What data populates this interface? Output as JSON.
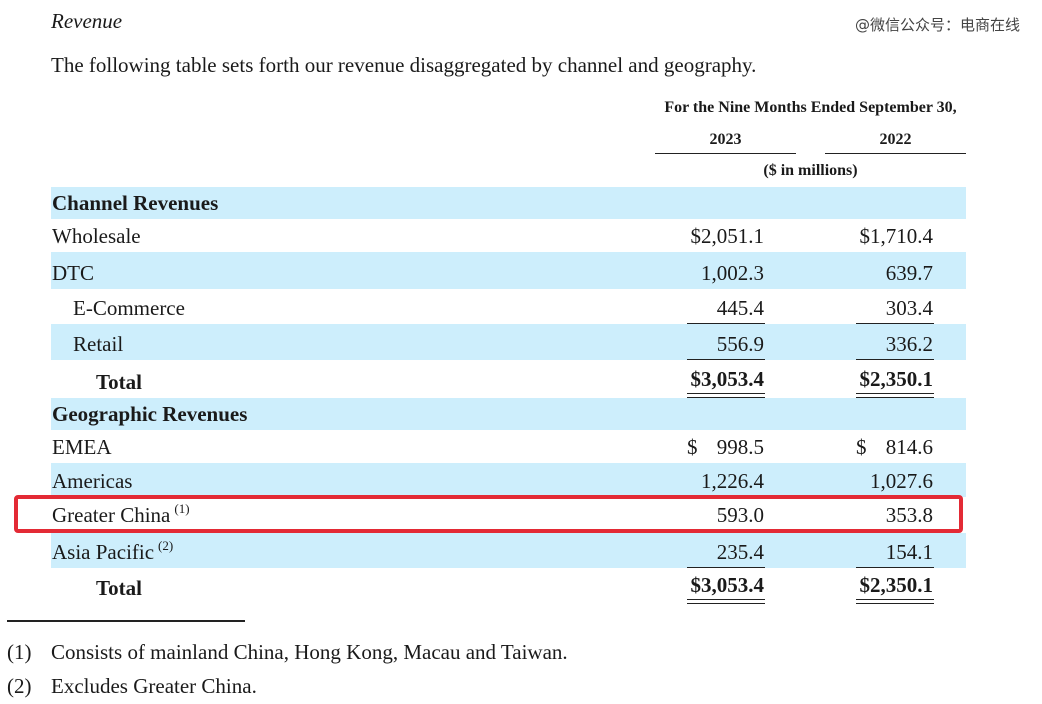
{
  "section_title": "Revenue",
  "intro": "The following table sets forth our revenue disaggregated by channel and geography.",
  "watermark": "@微信公众号：电商在线",
  "table": {
    "period_header": "For the Nine Months Ended September 30,",
    "years": [
      "2023",
      "2022"
    ],
    "units": "($ in millions)",
    "channel": {
      "heading": "Channel Revenues",
      "wholesale": {
        "label": "Wholesale",
        "v2023": "$2,051.1",
        "v2022": "$1,710.4"
      },
      "dtc": {
        "label": "DTC",
        "v2023": "1,002.3",
        "v2022": "639.7"
      },
      "ecommerce": {
        "label": "E-Commerce",
        "v2023": "445.4",
        "v2022": "303.4"
      },
      "retail": {
        "label": "Retail",
        "v2023": "556.9",
        "v2022": "336.2"
      },
      "total": {
        "label": "Total",
        "v2023": "$3,053.4",
        "v2022": "$2,350.1"
      }
    },
    "geographic": {
      "heading": "Geographic Revenues",
      "emea": {
        "label": "EMEA",
        "cur": "$",
        "v2023": "998.5",
        "v2022": "814.6"
      },
      "americas": {
        "label": "Americas",
        "v2023": "1,226.4",
        "v2022": "1,027.6"
      },
      "greater_china": {
        "label": "Greater China",
        "note": "(1)",
        "v2023": "593.0",
        "v2022": "353.8"
      },
      "asia_pacific": {
        "label": "Asia Pacific",
        "note": "(2)",
        "v2023": "235.4",
        "v2022": "154.1"
      },
      "total": {
        "label": "Total",
        "v2023": "$3,053.4",
        "v2022": "$2,350.1"
      }
    }
  },
  "highlight_color": "#e32a35",
  "row_shade_color": "#cdeefc",
  "footnotes": [
    {
      "num": "(1)",
      "text": "Consists of mainland China, Hong Kong, Macau and Taiwan."
    },
    {
      "num": "(2)",
      "text": "Excludes Greater China."
    }
  ]
}
